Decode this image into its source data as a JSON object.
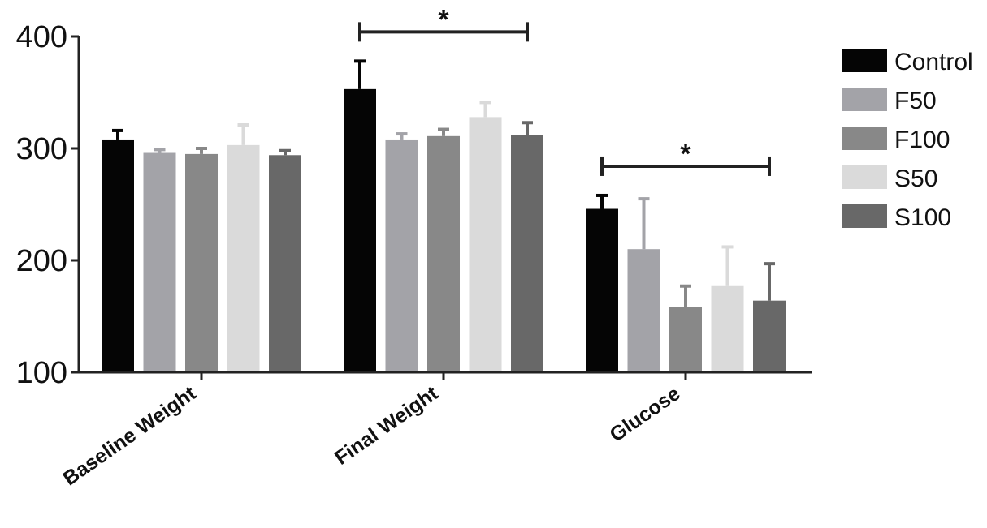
{
  "chart_data": {
    "type": "bar",
    "categories": [
      "Baseline Weight",
      "Final Weight",
      "Glucose"
    ],
    "series": [
      {
        "name": "Control",
        "color": "#050505",
        "values": [
          308,
          353,
          246
        ],
        "errors": [
          8,
          25,
          12
        ]
      },
      {
        "name": "F50",
        "color": "#a3a3a8",
        "values": [
          296,
          308,
          210
        ],
        "errors": [
          3,
          5,
          45
        ]
      },
      {
        "name": "F100",
        "color": "#888888",
        "values": [
          295,
          311,
          158
        ],
        "errors": [
          5,
          6,
          19
        ]
      },
      {
        "name": "S50",
        "color": "#dadada",
        "values": [
          303,
          328,
          177
        ],
        "errors": [
          18,
          13,
          35
        ]
      },
      {
        "name": "S100",
        "color": "#686868",
        "values": [
          294,
          312,
          164
        ],
        "errors": [
          4,
          11,
          33
        ]
      }
    ],
    "yticks": [
      "100",
      "200",
      "300",
      "400"
    ],
    "ylim": [
      100,
      400
    ],
    "xlabel": "",
    "ylabel": "",
    "legend_position": "top-right",
    "significance": [
      {
        "category": "Final Weight",
        "label": "*",
        "from_series": "Control",
        "to_series": "S100"
      },
      {
        "category": "Glucose",
        "label": "*",
        "from_series": "Control",
        "to_series": "S100"
      }
    ]
  }
}
